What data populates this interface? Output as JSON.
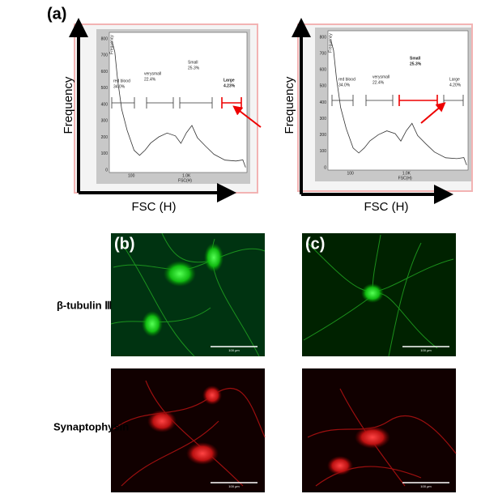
{
  "panel_a": {
    "label": "(a)",
    "y_axis_title": "Frequency",
    "x_axis_title": "FSC (H)",
    "plots": [
      {
        "inner_y_label": "Frequency",
        "inner_x_label": "FSC(H)",
        "yticks": [
          "800",
          "700",
          "600",
          "500",
          "400",
          "300",
          "200",
          "100",
          "0"
        ],
        "xticks": [
          "100",
          "1.0K"
        ],
        "gates": [
          {
            "name": "red blood",
            "percent": "34.0%"
          },
          {
            "name": "verysmall",
            "percent": "22.4%"
          },
          {
            "name": "Small",
            "percent": "25.3%"
          },
          {
            "name": "Large",
            "percent": "4.23%"
          }
        ]
      },
      {
        "inner_y_label": "Frequency",
        "inner_x_label": "FSC(H)",
        "yticks": [
          "800",
          "700",
          "600",
          "500",
          "400",
          "300",
          "200",
          "100",
          "0"
        ],
        "xticks": [
          "100",
          "1.0K"
        ],
        "gates": [
          {
            "name": "red blood",
            "percent": "34.0%"
          },
          {
            "name": "verysmall",
            "percent": "22.4%"
          },
          {
            "name": "Small",
            "percent": "25.3%"
          },
          {
            "name": "Large",
            "percent": "4.20%"
          }
        ]
      }
    ]
  },
  "panel_b": {
    "label": "(b)"
  },
  "panel_c": {
    "label": "(c)"
  },
  "rows": [
    "β-tubulin Ⅲ",
    "Synaptophysin"
  ],
  "scale_bar": "100 μm"
}
